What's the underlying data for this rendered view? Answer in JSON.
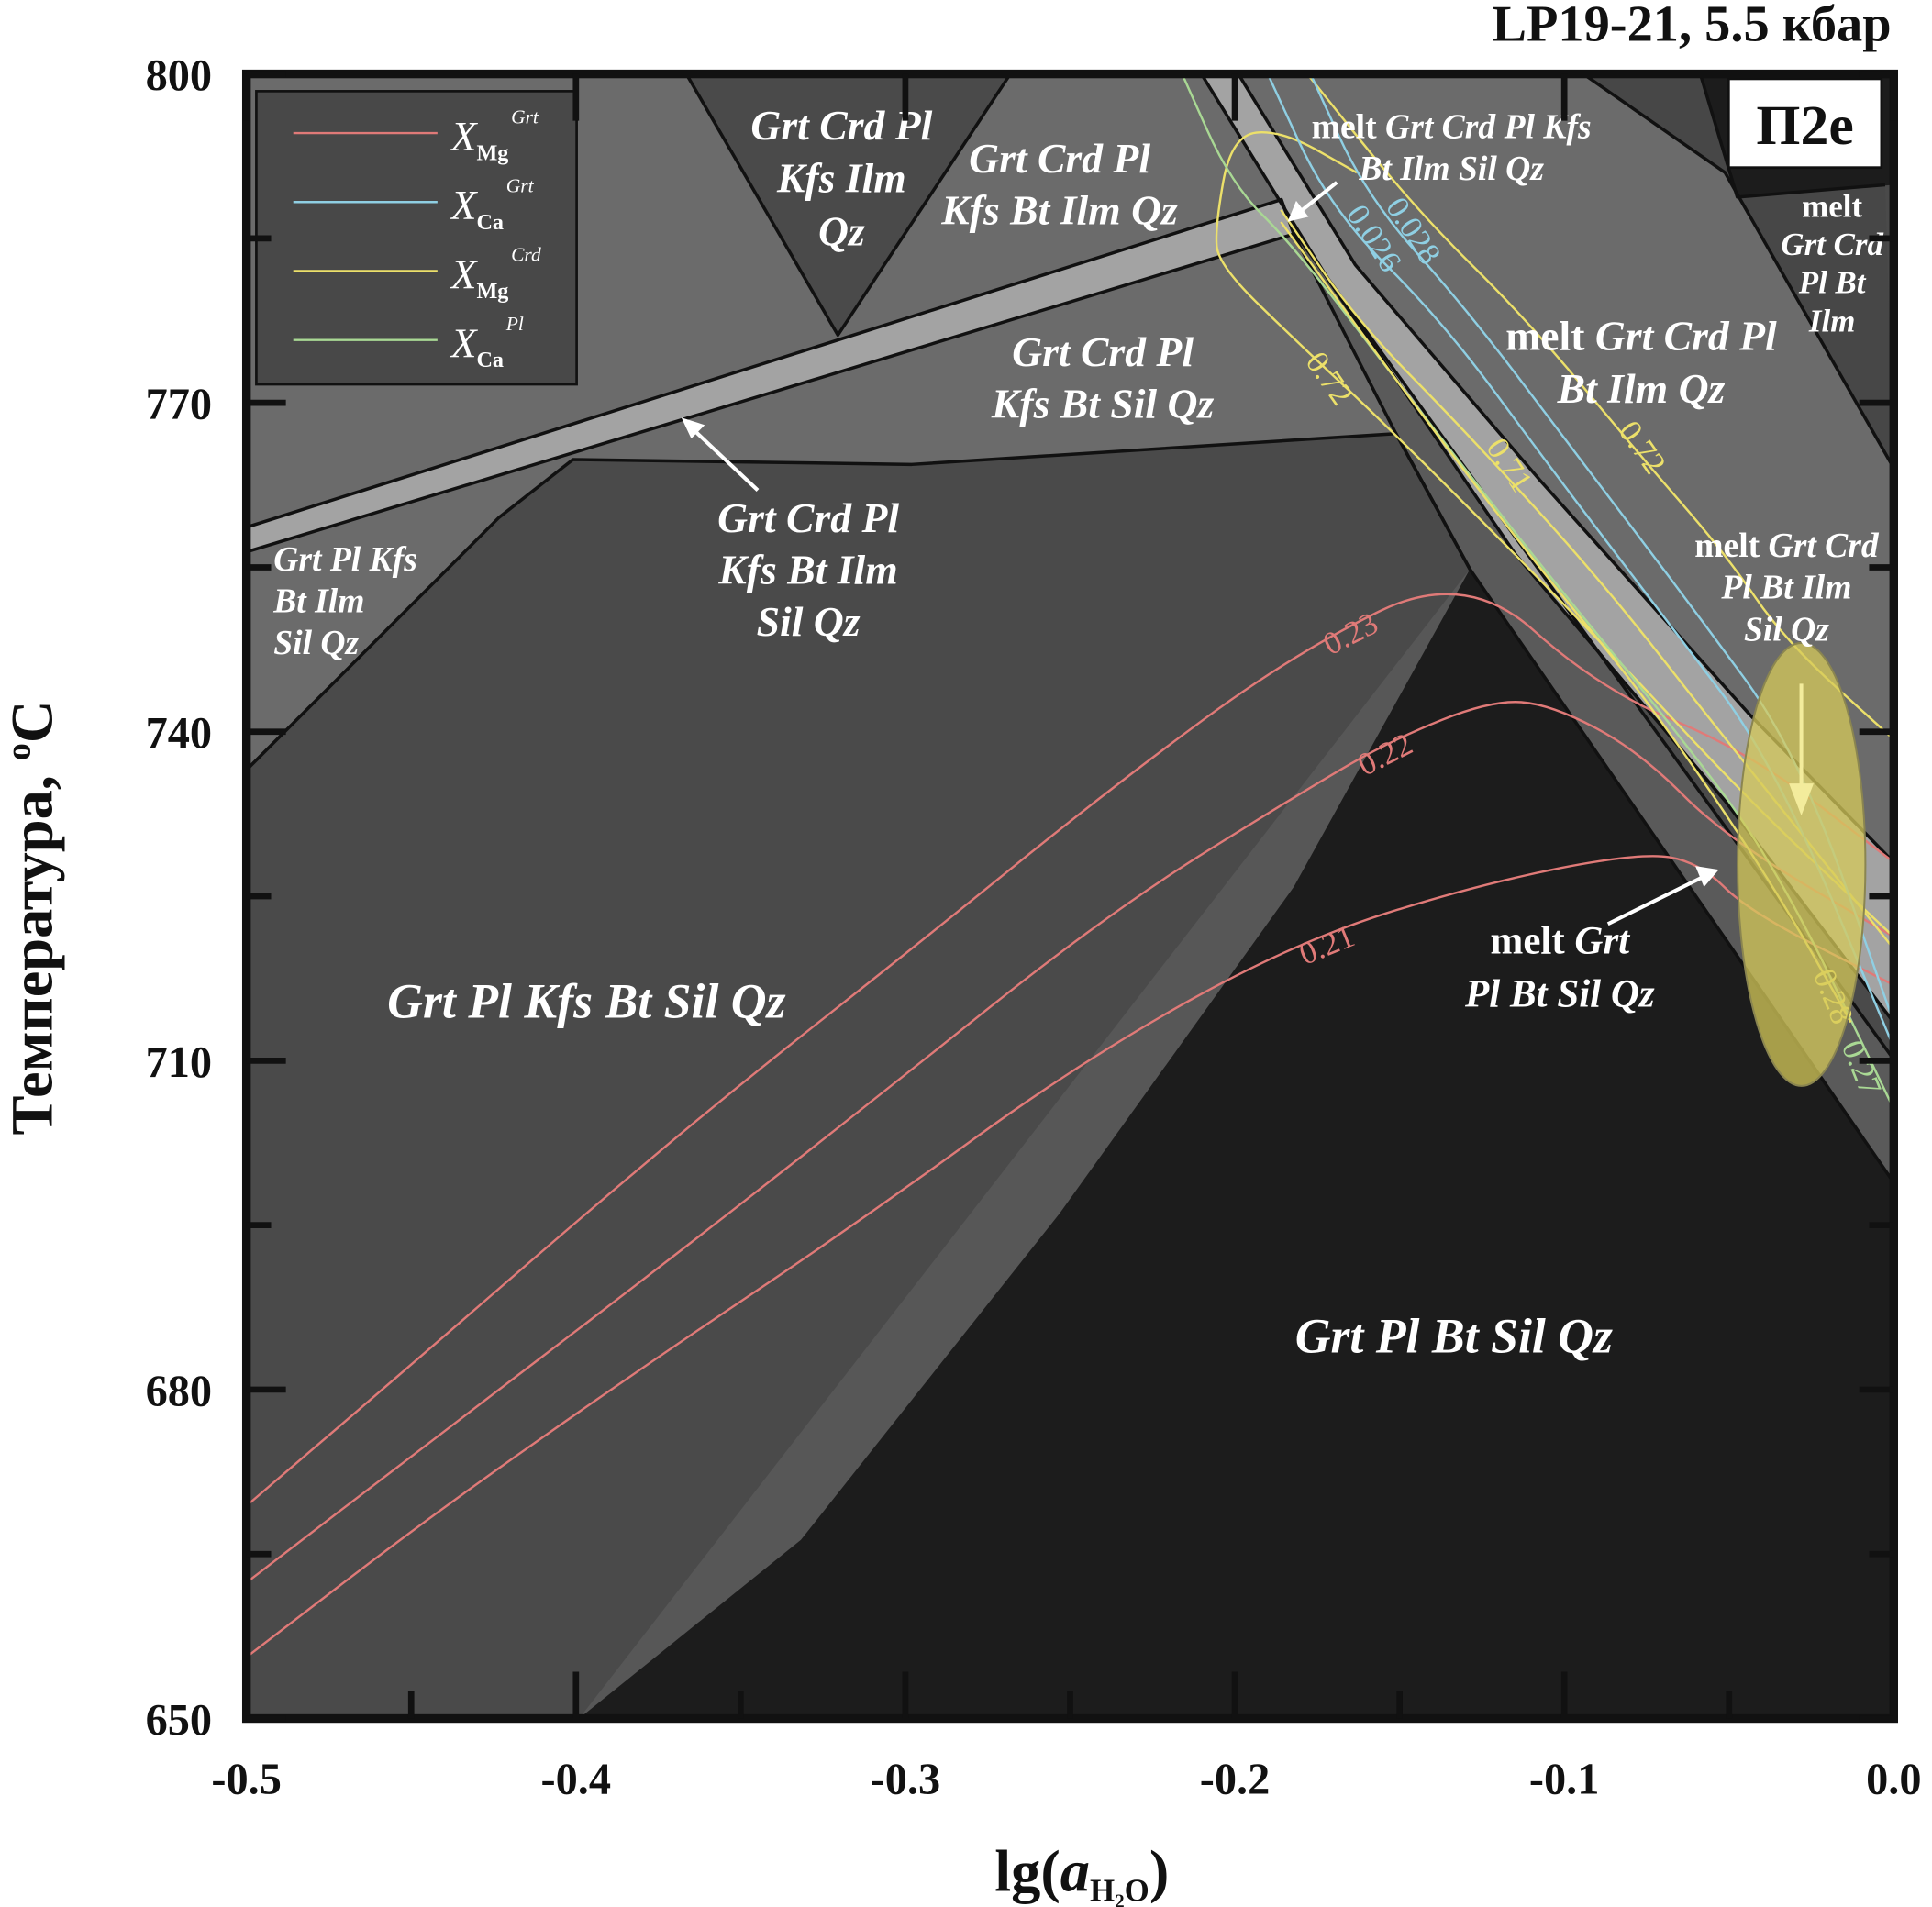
{
  "chart_data": {
    "type": "line",
    "subtype": "phase-diagram pseudosection",
    "title": "LP19-21, 5.5 кбар",
    "panel_label": "П2е",
    "xlabel": {
      "main": "lg(",
      "var": "a",
      "sub": "H₂O",
      "close": ")"
    },
    "ylabel": {
      "main": "Температура, ",
      "sup": "o",
      "unit": "C"
    },
    "xlim": [
      -0.5,
      0.0
    ],
    "ylim": [
      650,
      800
    ],
    "x_ticks": [
      {
        "value": -0.5,
        "label": "-0.5"
      },
      {
        "value": -0.4,
        "label": "-0.4"
      },
      {
        "value": -0.3,
        "label": "-0.3"
      },
      {
        "value": -0.2,
        "label": "-0.2"
      },
      {
        "value": -0.1,
        "label": "-0.1"
      },
      {
        "value": 0.0,
        "label": "0.0"
      }
    ],
    "y_ticks": [
      {
        "value": 800,
        "label": "800"
      },
      {
        "value": 770,
        "label": "770"
      },
      {
        "value": 740,
        "label": "740"
      },
      {
        "value": 710,
        "label": "710"
      },
      {
        "value": 680,
        "label": "680"
      },
      {
        "value": 650,
        "label": "650"
      }
    ],
    "legend": {
      "placement": "top-left",
      "entries": [
        {
          "symbol": "X",
          "sub": "Mg",
          "sup": "Grt",
          "color": "#e07a78"
        },
        {
          "symbol": "X",
          "sub": "Ca",
          "sup": "Grt",
          "color": "#8fcfe3"
        },
        {
          "symbol": "X",
          "sub": "Mg",
          "sup": "Crd",
          "color": "#ece06a"
        },
        {
          "symbol": "X",
          "sub": "Ca",
          "sup": "Pl",
          "color": "#a9d894"
        }
      ]
    },
    "fields": [
      {
        "lines": [
          "Grt Crd Pl",
          "Kfs Ilm",
          "Qz"
        ]
      },
      {
        "lines": [
          "Grt Crd Pl",
          "Kfs Bt Ilm Qz"
        ]
      },
      {
        "lines": [
          "Grt Crd Pl",
          "Kfs Bt Sil Qz"
        ]
      },
      {
        "lines": [
          "Grt Crd Pl",
          "Kfs Bt Ilm",
          "Sil Qz"
        ]
      },
      {
        "lines": [
          "Grt Pl Kfs",
          "Bt Ilm",
          "Sil Qz"
        ]
      },
      {
        "lines": [
          "Grt Pl Kfs Bt Sil Qz"
        ]
      },
      {
        "lines": [
          "Grt Pl Bt Sil Qz"
        ]
      },
      {
        "lines": [
          "melt Grt",
          "Pl Bt Sil Qz"
        ]
      },
      {
        "lines": [
          "melt Grt Crd Pl Kfs",
          "Bt Ilm Sil Qz"
        ]
      },
      {
        "lines": [
          "melt Grt Crd Pl",
          "Bt Ilm Qz"
        ]
      },
      {
        "lines": [
          "melt",
          "Grt Crd",
          "Pl Bt",
          "Ilm"
        ]
      },
      {
        "lines": [
          "melt Grt Crd",
          "Pl Bt Ilm",
          "Sil Qz"
        ]
      }
    ],
    "series": [
      {
        "name": "X_Mg Grt",
        "label": "0.23",
        "color": "#e07a78",
        "points": [
          [
            -0.5,
            669.4
          ],
          [
            -0.451,
            682.0
          ],
          [
            -0.395,
            696.6
          ],
          [
            -0.35,
            707.9
          ],
          [
            -0.298,
            720.2
          ],
          [
            -0.238,
            734.8
          ],
          [
            -0.182,
            747.2
          ],
          [
            -0.13,
            754.8
          ],
          [
            -0.089,
            743.8
          ],
          [
            -0.044,
            738.2
          ],
          [
            0.0,
            728.1
          ]
        ]
      },
      {
        "name": "X_Mg Grt",
        "label": "0.22",
        "color": "#e07a78",
        "points": [
          [
            -0.5,
            662.4
          ],
          [
            -0.444,
            675.3
          ],
          [
            -0.38,
            689.9
          ],
          [
            -0.313,
            705.6
          ],
          [
            -0.238,
            723.6
          ],
          [
            -0.178,
            734.8
          ],
          [
            -0.152,
            739.3
          ],
          [
            -0.122,
            742.9
          ],
          [
            -0.104,
            742.5
          ],
          [
            -0.077,
            738.2
          ],
          [
            -0.051,
            730.3
          ],
          [
            0.0,
            721.3
          ]
        ]
      },
      {
        "name": "X_Mg Grt",
        "label": "0.21",
        "color": "#e07a78",
        "points": [
          [
            -0.5,
            655.6
          ],
          [
            -0.444,
            668.5
          ],
          [
            -0.38,
            682.0
          ],
          [
            -0.313,
            695.5
          ],
          [
            -0.246,
            710.1
          ],
          [
            -0.182,
            720.8
          ],
          [
            -0.126,
            726.1
          ],
          [
            -0.077,
            729.0
          ],
          [
            -0.059,
            728.1
          ],
          [
            -0.044,
            723.6
          ],
          [
            0.0,
            716.9
          ]
        ]
      },
      {
        "name": "X_Mg Crd",
        "label": "0.72",
        "color": "#ece06a",
        "points": [
          [
            -0.163,
            791.0
          ],
          [
            -0.186,
            794.9
          ],
          [
            -0.201,
            794.4
          ],
          [
            -0.206,
            786.0
          ],
          [
            -0.205,
            782.6
          ],
          [
            -0.182,
            775.8
          ],
          [
            -0.152,
            767.4
          ],
          [
            -0.089,
            748.3
          ],
          [
            -0.044,
            733.7
          ],
          [
            0.0,
            721.3
          ]
        ]
      },
      {
        "name": "X_Mg Crd",
        "label": "0.72",
        "color": "#ece06a",
        "points": [
          [
            -0.178,
            800
          ],
          [
            -0.145,
            787.6
          ],
          [
            -0.111,
            777.5
          ],
          [
            -0.077,
            765.2
          ],
          [
            -0.051,
            756.2
          ],
          [
            -0.033,
            748.3
          ],
          [
            0.0,
            739.3
          ]
        ]
      },
      {
        "name": "X_Mg Crd",
        "label": "0.71",
        "color": "#ece06a",
        "points": [
          [
            -0.186,
            787.6
          ],
          [
            -0.163,
            777.5
          ],
          [
            -0.13,
            767.4
          ],
          [
            -0.089,
            753.9
          ],
          [
            -0.051,
            739.3
          ],
          [
            -0.021,
            728.1
          ],
          [
            0.0,
            720.2
          ]
        ]
      },
      {
        "name": "X_Ca Grt",
        "label": "0.026",
        "color": "#8fcfe3",
        "points": [
          [
            -0.19,
            800
          ],
          [
            -0.171,
            787.6
          ],
          [
            -0.137,
            777.5
          ],
          [
            -0.104,
            764.0
          ],
          [
            -0.07,
            750.6
          ],
          [
            -0.036,
            737.1
          ],
          [
            0.0,
            711.2
          ]
        ]
      },
      {
        "name": "X_Ca Grt",
        "label": "0.028",
        "color": "#8fcfe3",
        "points": [
          [
            -0.177,
            800
          ],
          [
            -0.16,
            788.8
          ],
          [
            -0.13,
            778.7
          ],
          [
            -0.096,
            765.2
          ],
          [
            -0.062,
            751.7
          ],
          [
            -0.029,
            738.2
          ],
          [
            0.0,
            713.5
          ]
        ]
      },
      {
        "name": "X_Ca Pl",
        "label": "0.27",
        "color": "#a9d894",
        "points": [
          [
            -0.216,
            800
          ],
          [
            -0.201,
            789.9
          ],
          [
            -0.182,
            784.3
          ],
          [
            -0.145,
            769.7
          ],
          [
            -0.107,
            755.1
          ],
          [
            -0.07,
            741.6
          ],
          [
            -0.036,
            728.1
          ],
          [
            0.0,
            705.6
          ]
        ]
      },
      {
        "name": "X_Mg Crd",
        "label": "0.28",
        "color": "#ece06a",
        "points": [
          [
            -0.186,
            786.5
          ],
          [
            -0.148,
            770.8
          ],
          [
            -0.111,
            756.2
          ],
          [
            -0.074,
            742.7
          ],
          [
            -0.036,
            725.8
          ],
          [
            -0.013,
            713.5
          ]
        ]
      }
    ],
    "highlight_ellipse": {
      "center": [
        -0.028,
        727.9
      ],
      "semi_axes": [
        0.0194,
        20.2
      ],
      "color": "#d6c95a",
      "arrow": "cooling, downward"
    },
    "grid": false
  }
}
